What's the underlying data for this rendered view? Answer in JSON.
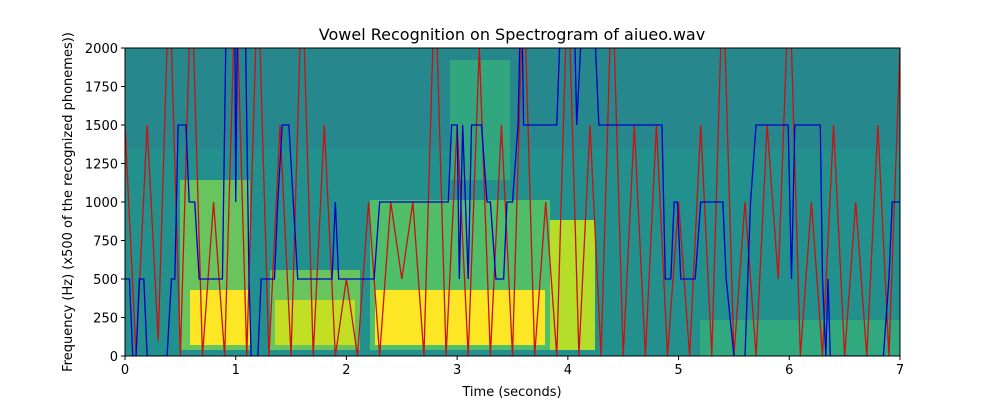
{
  "chart_data": {
    "type": "line",
    "title": "Vowel Recognition on Spectrogram of aiueo.wav",
    "xlabel": "Time (seconds)",
    "ylabel": "Frequency (Hz) (x500 of the recognized phonemes))",
    "xlim": [
      0,
      7
    ],
    "ylim": [
      0,
      2000
    ],
    "xticks": [
      0,
      1,
      2,
      3,
      4,
      5,
      6,
      7
    ],
    "yticks": [
      0,
      250,
      500,
      750,
      1000,
      1250,
      1500,
      1750,
      2000
    ],
    "series": [
      {
        "color": "#cc1111",
        "x": [
          0,
          0.1,
          0.2,
          0.3,
          0.4,
          0.5,
          0.6,
          0.7,
          0.8,
          0.9,
          1.0,
          1.1,
          1.2,
          1.3,
          1.4,
          1.5,
          1.6,
          1.7,
          1.8,
          1.9,
          2.0,
          2.1,
          2.2,
          2.3,
          2.4,
          2.5,
          2.6,
          2.7,
          2.8,
          2.9,
          3.0,
          3.1,
          3.2,
          3.3,
          3.4,
          3.5,
          3.6,
          3.7,
          3.8,
          3.9,
          4.0,
          4.1,
          4.2,
          4.3,
          4.4,
          4.5,
          4.6,
          4.7,
          4.8,
          4.9,
          5.0,
          5.1,
          5.2,
          5.3,
          5.4,
          5.5,
          5.6,
          5.7,
          5.8,
          5.9,
          6.0,
          6.1,
          6.2,
          6.3,
          6.4,
          6.5,
          6.6,
          6.7,
          6.8,
          6.9,
          7.0
        ],
        "values": [
          1500,
          0,
          1500,
          100,
          2500,
          0,
          2500,
          0,
          1000,
          0,
          2500,
          0,
          2500,
          0,
          1500,
          0,
          2500,
          0,
          1500,
          0,
          500,
          0,
          1000,
          0,
          1000,
          500,
          1000,
          0,
          2500,
          0,
          1500,
          0,
          2000,
          0,
          1500,
          0,
          2500,
          0,
          1000,
          0,
          2500,
          0,
          1500,
          0,
          2500,
          0,
          1500,
          0,
          1500,
          0,
          1000,
          0,
          1500,
          0,
          2500,
          0,
          1000,
          0,
          1500,
          500,
          2500,
          0,
          1000,
          0,
          1500,
          0,
          1000,
          0,
          1500,
          0,
          2000
        ]
      },
      {
        "color": "#0000cc",
        "x": [
          0,
          0.04,
          0.07,
          0.1,
          0.13,
          0.17,
          0.2,
          0.38,
          0.42,
          0.45,
          0.48,
          0.55,
          0.58,
          0.63,
          0.67,
          0.88,
          0.92,
          0.99,
          1.0,
          1.02,
          1.08,
          1.12,
          1.14,
          1.2,
          1.23,
          1.35,
          1.38,
          1.42,
          1.48,
          1.52,
          1.56,
          1.87,
          1.9,
          1.93,
          2.25,
          2.3,
          2.92,
          2.95,
          3.0,
          3.02,
          3.05,
          3.1,
          3.13,
          3.22,
          3.27,
          3.3,
          3.35,
          3.42,
          3.45,
          3.5,
          3.55,
          3.58,
          3.6,
          3.9,
          3.95,
          4.05,
          4.08,
          4.15,
          4.22,
          4.28,
          4.85,
          4.88,
          4.93,
          4.96,
          4.99,
          5.02,
          5.15,
          5.2,
          5.4,
          5.43,
          5.5,
          5.6,
          5.65,
          5.7,
          5.99,
          6.02,
          6.05,
          6.28,
          6.3,
          6.33,
          6.35,
          6.37,
          6.85,
          6.9,
          6.93,
          7.0
        ],
        "values": [
          500,
          500,
          0,
          0,
          500,
          500,
          0,
          0,
          500,
          500,
          1500,
          1500,
          1000,
          1000,
          500,
          500,
          2500,
          2500,
          1000,
          2500,
          2500,
          500,
          0,
          0,
          500,
          500,
          1000,
          1500,
          1500,
          1000,
          500,
          500,
          1000,
          500,
          500,
          1000,
          1000,
          1500,
          1500,
          500,
          1500,
          500,
          1500,
          1500,
          1000,
          1000,
          500,
          500,
          1000,
          1000,
          1500,
          2500,
          1500,
          1500,
          2500,
          2500,
          1500,
          2500,
          2500,
          1500,
          1500,
          500,
          500,
          1000,
          1000,
          500,
          500,
          1000,
          1000,
          500,
          0,
          0,
          1000,
          1500,
          1500,
          500,
          1500,
          1500,
          500,
          0,
          500,
          0,
          0,
          500,
          1000,
          1000
        ]
      }
    ]
  }
}
